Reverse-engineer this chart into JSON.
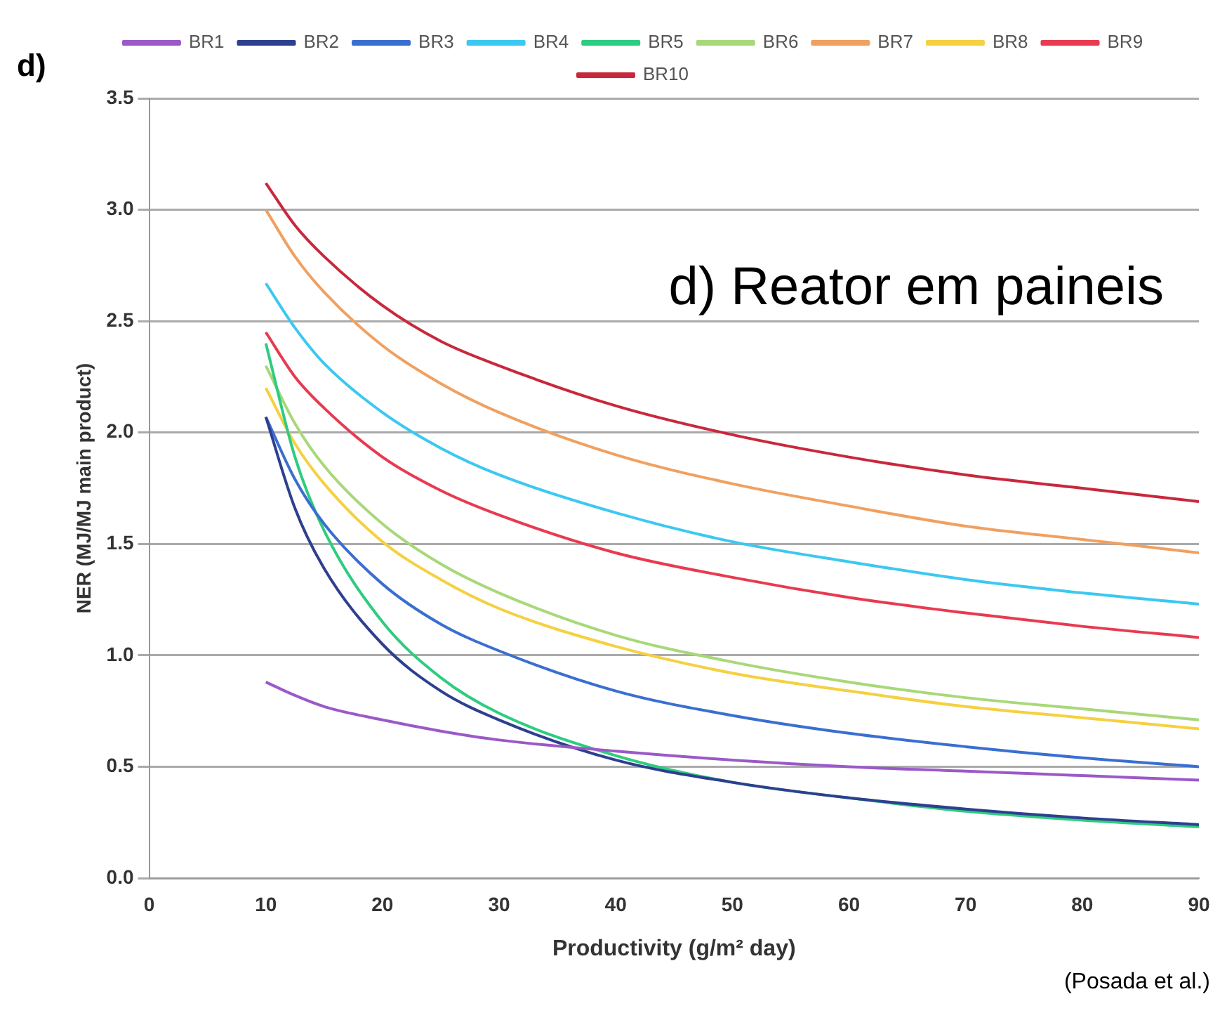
{
  "chart_data": {
    "type": "line",
    "xlabel": "Productivity (g/m² day)",
    "ylabel": "NER (MJ/MJ main product)",
    "annotations": [
      "d)",
      "d) Reator em paineis",
      "(Posada et al.)"
    ],
    "x": [
      10,
      12.5,
      15,
      20,
      25,
      30,
      40,
      50,
      60,
      70,
      80,
      90
    ],
    "xlim": [
      0,
      90
    ],
    "xticks": [
      0,
      10,
      20,
      30,
      40,
      50,
      60,
      70,
      80,
      90
    ],
    "ylim": [
      0,
      3.5
    ],
    "yticks": [
      {
        "value": 0,
        "label": "0.0"
      },
      0.5,
      {
        "value": 1,
        "label": "1.0"
      },
      1.5,
      {
        "value": 2,
        "label": "2.0"
      },
      2.5,
      {
        "value": 3,
        "label": "3.0"
      },
      3.5
    ],
    "grid": "y",
    "legend": "top",
    "marker": "none",
    "line_style": "solid",
    "series": [
      {
        "name": "BR1",
        "color": "#9b59c8",
        "values": [
          0.88,
          0.82,
          0.77,
          0.71,
          0.66,
          0.62,
          0.57,
          0.53,
          0.5,
          0.48,
          0.46,
          0.44
        ]
      },
      {
        "name": "BR2",
        "color": "#2e3f8f",
        "values": [
          2.07,
          1.66,
          1.39,
          1.05,
          0.84,
          0.71,
          0.53,
          0.43,
          0.36,
          0.31,
          0.27,
          0.24
        ]
      },
      {
        "name": "BR3",
        "color": "#3a6fd0",
        "values": [
          2.07,
          1.79,
          1.59,
          1.32,
          1.14,
          1.02,
          0.84,
          0.73,
          0.65,
          0.59,
          0.54,
          0.5
        ]
      },
      {
        "name": "BR4",
        "color": "#3cc8f0",
        "values": [
          2.67,
          2.47,
          2.31,
          2.09,
          1.93,
          1.81,
          1.64,
          1.51,
          1.42,
          1.34,
          1.28,
          1.23
        ]
      },
      {
        "name": "BR5",
        "color": "#2ecc80",
        "values": [
          2.4,
          1.89,
          1.56,
          1.15,
          0.9,
          0.74,
          0.55,
          0.43,
          0.36,
          0.3,
          0.26,
          0.23
        ]
      },
      {
        "name": "BR6",
        "color": "#a8d878",
        "values": [
          2.3,
          2.04,
          1.85,
          1.59,
          1.41,
          1.28,
          1.09,
          0.97,
          0.88,
          0.81,
          0.76,
          0.71
        ]
      },
      {
        "name": "BR7",
        "color": "#f0a060",
        "values": [
          3.0,
          2.79,
          2.63,
          2.39,
          2.22,
          2.09,
          1.9,
          1.77,
          1.67,
          1.58,
          1.52,
          1.46
        ]
      },
      {
        "name": "BR8",
        "color": "#f5d040",
        "values": [
          2.2,
          1.95,
          1.77,
          1.51,
          1.34,
          1.21,
          1.04,
          0.92,
          0.84,
          0.77,
          0.72,
          0.67
        ]
      },
      {
        "name": "BR9",
        "color": "#e83a50",
        "values": [
          2.45,
          2.25,
          2.11,
          1.89,
          1.74,
          1.63,
          1.46,
          1.35,
          1.26,
          1.19,
          1.13,
          1.08
        ]
      },
      {
        "name": "BR10",
        "color": "#c8283c",
        "values": [
          3.12,
          2.93,
          2.79,
          2.57,
          2.41,
          2.3,
          2.12,
          1.99,
          1.89,
          1.81,
          1.75,
          1.69
        ]
      }
    ]
  }
}
